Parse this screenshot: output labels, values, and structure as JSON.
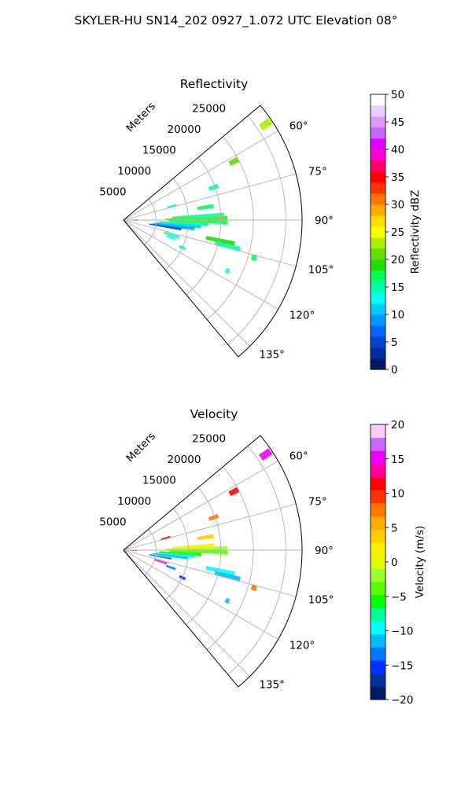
{
  "figure": {
    "title": "SKYLER-HU  SN14_202  0927_1.072 UTC Elevation 08°"
  },
  "chart_data": [
    {
      "type": "polar-sector",
      "title": "Reflectivity",
      "range_axis_label": "Meters",
      "range_ticks": [
        "5000",
        "10000",
        "15000",
        "20000",
        "25000"
      ],
      "range_max": 27500,
      "azimuth_range_deg": [
        50,
        140
      ],
      "azimuth_ticks": [
        "60°",
        "75°",
        "90°",
        "105°",
        "120°",
        "135°"
      ],
      "grid": true,
      "colorbar": {
        "label": "Reflectivity dBZ",
        "min": 0,
        "max": 50,
        "ticks": [
          "0",
          "5",
          "10",
          "15",
          "20",
          "25",
          "30",
          "35",
          "40",
          "45",
          "50"
        ]
      },
      "echoes": [
        {
          "az": 90,
          "r0": 0,
          "r1": 2800,
          "value": 25
        },
        {
          "az": 88,
          "r0": 600,
          "r1": 2200,
          "value": 20
        },
        {
          "az": 92,
          "r0": 600,
          "r1": 2200,
          "value": 18
        },
        {
          "az": 89,
          "r0": 6500,
          "r1": 16000,
          "value": 20
        },
        {
          "az": 91,
          "r0": 7000,
          "r1": 16000,
          "value": 17
        },
        {
          "az": 87,
          "r0": 7500,
          "r1": 15500,
          "value": 15
        },
        {
          "az": 93,
          "r0": 5500,
          "r1": 13000,
          "value": 15
        },
        {
          "az": 95,
          "r0": 5000,
          "r1": 12000,
          "value": 10
        },
        {
          "az": 97,
          "r0": 4500,
          "r1": 11000,
          "value": 8
        },
        {
          "az": 99,
          "r0": 4000,
          "r1": 9000,
          "value": 5
        },
        {
          "az": 102,
          "r0": 13000,
          "r1": 17500,
          "value": 18
        },
        {
          "az": 104,
          "r0": 14500,
          "r1": 18500,
          "value": 15
        },
        {
          "az": 107,
          "r0": 6500,
          "r1": 9000,
          "value": 14
        },
        {
          "az": 110,
          "r0": 7000,
          "r1": 8500,
          "value": 12
        },
        {
          "az": 115,
          "r0": 9500,
          "r1": 10500,
          "value": 14
        },
        {
          "az": 81,
          "r0": 11500,
          "r1": 14000,
          "value": 16
        },
        {
          "az": 74,
          "r0": 7000,
          "r1": 8500,
          "value": 12
        },
        {
          "az": 70,
          "r0": 14000,
          "r1": 15500,
          "value": 14
        },
        {
          "az": 62,
          "r0": 18500,
          "r1": 20000,
          "value": 20
        },
        {
          "az": 56,
          "r0": 25500,
          "r1": 27300,
          "value": 22
        },
        {
          "az": 106,
          "r0": 20500,
          "r1": 21300,
          "value": 16
        },
        {
          "az": 116,
          "r0": 17500,
          "r1": 18100,
          "value": 12
        }
      ]
    },
    {
      "type": "polar-sector",
      "title": "Velocity",
      "range_axis_label": "Meters",
      "range_ticks": [
        "5000",
        "10000",
        "15000",
        "20000",
        "25000"
      ],
      "range_max": 27500,
      "azimuth_range_deg": [
        50,
        140
      ],
      "azimuth_ticks": [
        "60°",
        "75°",
        "90°",
        "105°",
        "120°",
        "135°"
      ],
      "grid": true,
      "colorbar": {
        "label": "Velocity (m/s)",
        "min": -20,
        "max": 20,
        "ticks": [
          "−20",
          "−15",
          "−10",
          "−5",
          "0",
          "5",
          "10",
          "15",
          "20"
        ]
      },
      "echoes": [
        {
          "az": 90,
          "r0": 0,
          "r1": 2800,
          "value": -8
        },
        {
          "az": 88,
          "r0": 600,
          "r1": 2200,
          "value": 1
        },
        {
          "az": 93,
          "r0": 600,
          "r1": 2000,
          "value": 15
        },
        {
          "az": 89,
          "r0": 6500,
          "r1": 16000,
          "value": -2
        },
        {
          "az": 91,
          "r0": 7000,
          "r1": 16000,
          "value": -3
        },
        {
          "az": 87,
          "r0": 7500,
          "r1": 14000,
          "value": 1
        },
        {
          "az": 93,
          "r0": 5500,
          "r1": 12000,
          "value": -6
        },
        {
          "az": 95,
          "r0": 5000,
          "r1": 11000,
          "value": -9
        },
        {
          "az": 97,
          "r0": 4500,
          "r1": 10000,
          "value": -12
        },
        {
          "az": 100,
          "r0": 4000,
          "r1": 7500,
          "value": -14
        },
        {
          "az": 107,
          "r0": 5000,
          "r1": 7000,
          "value": 15
        },
        {
          "az": 102,
          "r0": 13000,
          "r1": 17500,
          "value": -9
        },
        {
          "az": 104,
          "r0": 14500,
          "r1": 18500,
          "value": -11
        },
        {
          "az": 110,
          "r0": 7000,
          "r1": 8500,
          "value": -14
        },
        {
          "az": 115,
          "r0": 9500,
          "r1": 10500,
          "value": -16
        },
        {
          "az": 81,
          "r0": 11500,
          "r1": 14000,
          "value": 3
        },
        {
          "az": 74,
          "r0": 6000,
          "r1": 7500,
          "value": 11
        },
        {
          "az": 70,
          "r0": 14000,
          "r1": 15500,
          "value": 8
        },
        {
          "az": 62,
          "r0": 18500,
          "r1": 20000,
          "value": 11
        },
        {
          "az": 56,
          "r0": 25500,
          "r1": 27300,
          "value": 15
        },
        {
          "az": 106,
          "r0": 20500,
          "r1": 21300,
          "value": 7
        },
        {
          "az": 116,
          "r0": 17500,
          "r1": 18100,
          "value": -12
        }
      ]
    }
  ],
  "colors": {
    "background": "#ffffff",
    "axes": "#000000",
    "grid": "#b0b0b0",
    "reflectivity_scale": [
      "#001a66",
      "#002aa0",
      "#0044cc",
      "#0066ff",
      "#0099ff",
      "#00ccff",
      "#00ffee",
      "#00ffaa",
      "#00ff55",
      "#22dd00",
      "#66dd00",
      "#aaee00",
      "#ffff00",
      "#ffdd00",
      "#ffaa00",
      "#ff7700",
      "#ff3300",
      "#ff0000",
      "#ff0066",
      "#ff00cc",
      "#dd00ff",
      "#cc66ff",
      "#dd99ff",
      "#eeccff",
      "#ffffff"
    ],
    "velocity_scale": [
      "#001a66",
      "#003399",
      "#0033ff",
      "#0077ff",
      "#00bbff",
      "#00ffff",
      "#00ff99",
      "#00ff00",
      "#55ff00",
      "#99ff33",
      "#ddff00",
      "#ffee00",
      "#ffcc00",
      "#ffaa00",
      "#ff7700",
      "#ff3300",
      "#ff0000",
      "#ff0099",
      "#ee00ff",
      "#cc66ff",
      "#ffccff"
    ]
  }
}
